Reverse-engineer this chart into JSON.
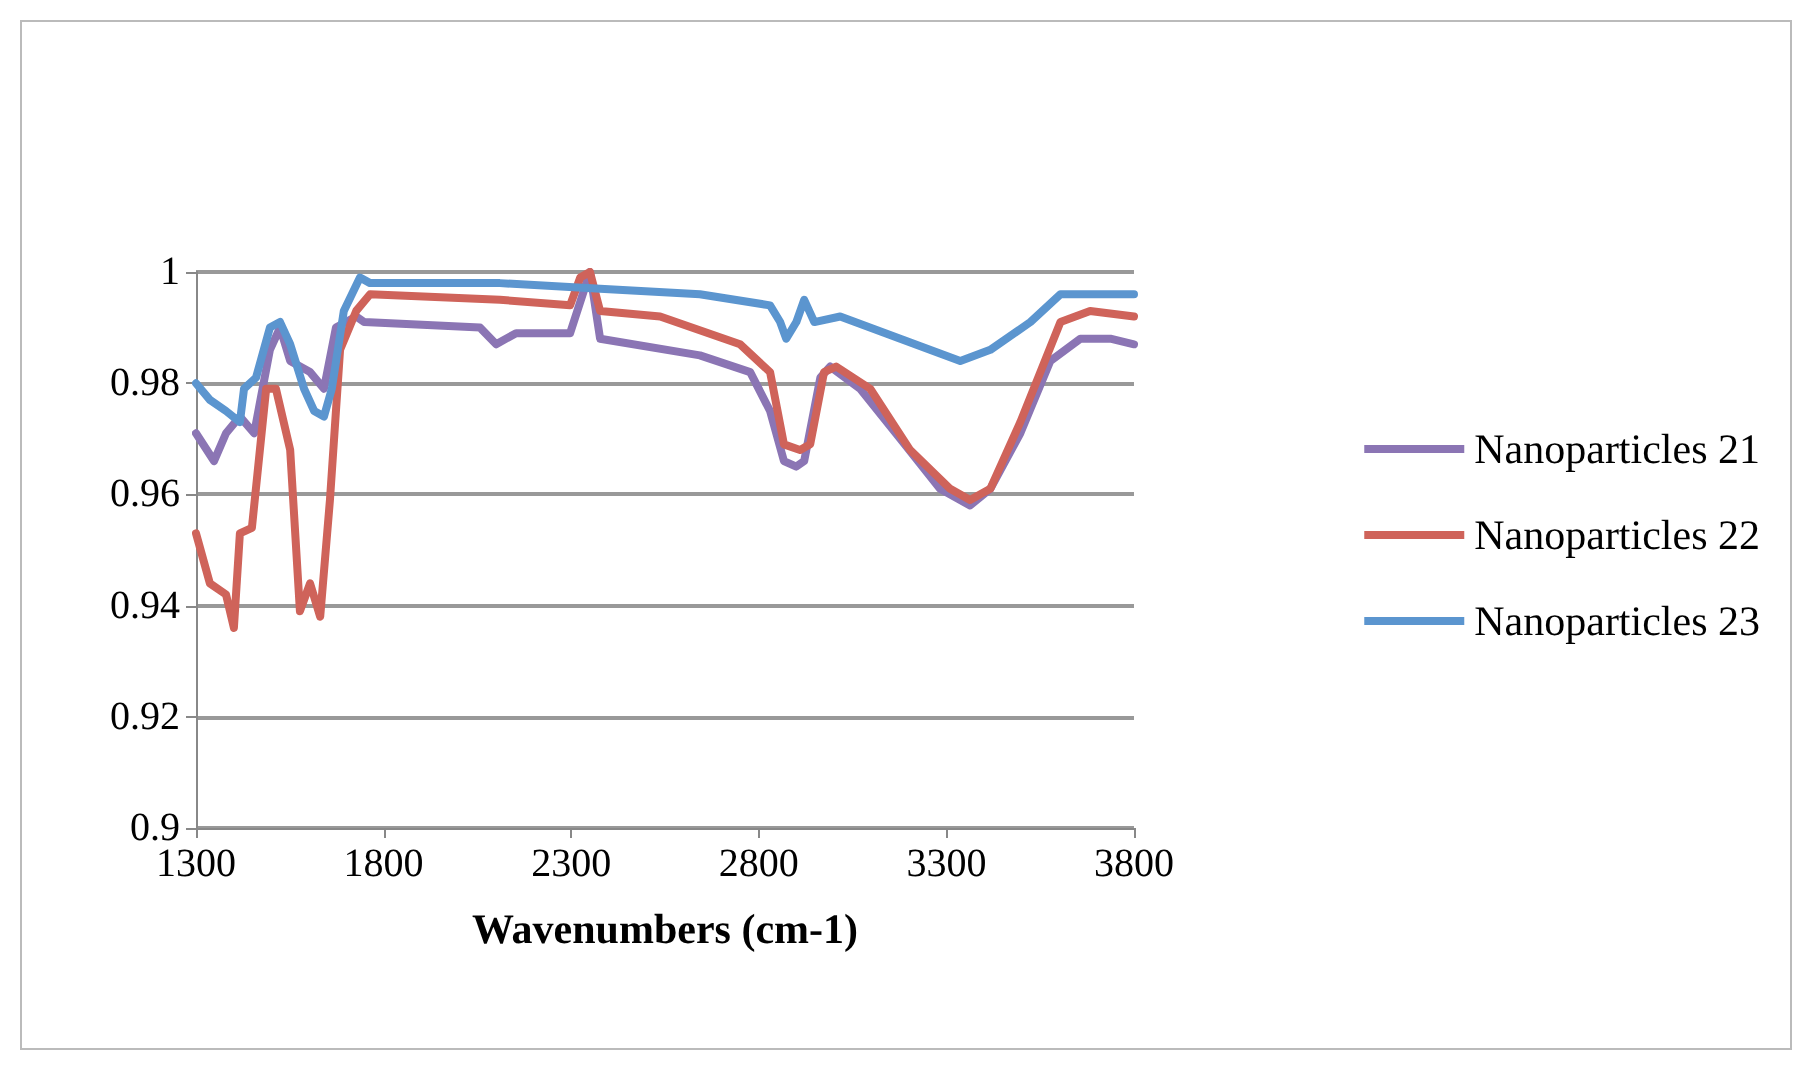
{
  "chart_data": {
    "type": "line",
    "xlabel": "Wavenumbers (cm-1)",
    "xlim": [
      1300,
      3800
    ],
    "xticks": [
      1300,
      1800,
      2300,
      2800,
      3300,
      3800
    ],
    "ylim": [
      0.9,
      1
    ],
    "yticks": [
      0.9,
      0.92,
      0.94,
      0.96,
      0.98,
      1
    ],
    "grid": "y",
    "legend": "right",
    "marker": "none",
    "line_style": "solid",
    "series": [
      {
        "name": "Nanoparticles 21",
        "color": "#8b75b4",
        "x": [
          1300,
          1348,
          1380,
          1417,
          1455,
          1497,
          1524,
          1551,
          1604,
          1641,
          1673,
          1727,
          1748,
          2057,
          2100,
          2153,
          2297,
          2350,
          2377,
          2643,
          2777,
          2830,
          2867,
          2900,
          2921,
          2964,
          2990,
          3070,
          3177,
          3283,
          3363,
          3417,
          3497,
          3577,
          3657,
          3737,
          3800
        ],
        "values": [
          0.971,
          0.966,
          0.971,
          0.974,
          0.971,
          0.986,
          0.99,
          0.984,
          0.982,
          0.979,
          0.99,
          0.992,
          0.991,
          0.99,
          0.987,
          0.989,
          0.989,
          1.0,
          0.988,
          0.985,
          0.982,
          0.975,
          0.966,
          0.965,
          0.966,
          0.981,
          0.983,
          0.979,
          0.97,
          0.961,
          0.958,
          0.961,
          0.971,
          0.984,
          0.988,
          0.988,
          0.987
        ]
      },
      {
        "name": "Nanoparticles 22",
        "color": "#cf635a",
        "x": [
          1300,
          1337,
          1380,
          1401,
          1417,
          1449,
          1487,
          1513,
          1551,
          1577,
          1604,
          1631,
          1657,
          1684,
          1727,
          1764,
          2110,
          2297,
          2324,
          2350,
          2377,
          2537,
          2750,
          2830,
          2867,
          2910,
          2937,
          2974,
          3006,
          3097,
          3203,
          3310,
          3363,
          3417,
          3497,
          3604,
          3683,
          3800
        ],
        "values": [
          0.953,
          0.944,
          0.942,
          0.936,
          0.953,
          0.954,
          0.979,
          0.979,
          0.968,
          0.939,
          0.944,
          0.938,
          0.959,
          0.986,
          0.993,
          0.996,
          0.995,
          0.994,
          0.999,
          1.0,
          0.993,
          0.992,
          0.987,
          0.982,
          0.969,
          0.968,
          0.969,
          0.982,
          0.983,
          0.979,
          0.968,
          0.961,
          0.959,
          0.961,
          0.973,
          0.991,
          0.993,
          0.992
        ]
      },
      {
        "name": "Nanoparticles 23",
        "color": "#5b95cf",
        "x": [
          1300,
          1337,
          1380,
          1417,
          1428,
          1460,
          1497,
          1524,
          1551,
          1588,
          1615,
          1641,
          1662,
          1694,
          1737,
          1764,
          2110,
          2377,
          2643,
          2830,
          2857,
          2873,
          2900,
          2921,
          2948,
          3017,
          3177,
          3337,
          3417,
          3524,
          3604,
          3800
        ],
        "values": [
          0.98,
          0.977,
          0.975,
          0.973,
          0.979,
          0.981,
          0.99,
          0.991,
          0.987,
          0.979,
          0.975,
          0.974,
          0.979,
          0.993,
          0.999,
          0.998,
          0.998,
          0.997,
          0.996,
          0.994,
          0.991,
          0.988,
          0.991,
          0.995,
          0.991,
          0.992,
          0.988,
          0.984,
          0.986,
          0.991,
          0.996,
          0.996
        ]
      }
    ]
  }
}
